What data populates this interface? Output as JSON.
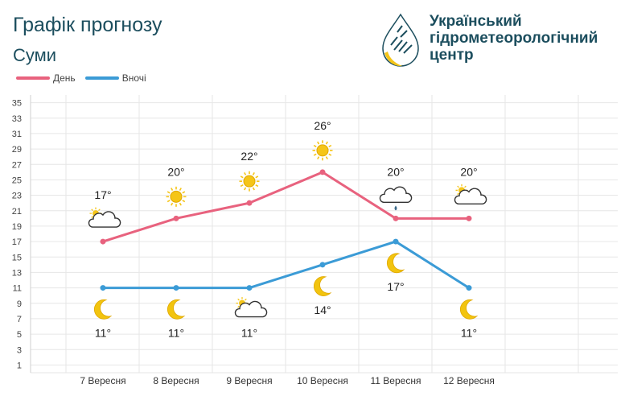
{
  "header": {
    "title": "Графік прогнозу",
    "city": "Суми"
  },
  "logo": {
    "line1": "Український",
    "line2": "гідрометеорологічний",
    "line3": "центр"
  },
  "colors": {
    "day": "#e8627e",
    "night": "#3b9bd6",
    "grid": "#e6e6e6",
    "sun": "#f5c518",
    "moon": "#f2c40f"
  },
  "chart_data": {
    "type": "line",
    "categories": [
      "7 Вересня",
      "8 Вересня",
      "9 Вересня",
      "10 Вересня",
      "11 Вересня",
      "12 Вересня"
    ],
    "series": [
      {
        "name": "День",
        "values": [
          17,
          20,
          22,
          26,
          20,
          20
        ],
        "labels": [
          "17°",
          "20°",
          "22°",
          "26°",
          "20°",
          "20°"
        ],
        "icons": [
          "partly-cloudy-icon",
          "sun-icon",
          "sun-icon",
          "sun-icon",
          "rain-cloud-icon",
          "partly-cloudy-icon"
        ]
      },
      {
        "name": "Вночі",
        "values": [
          11,
          11,
          11,
          14,
          17,
          11
        ],
        "labels": [
          "11°",
          "11°",
          "11°",
          "14°",
          "17°",
          "11°"
        ],
        "icons": [
          "moon-icon",
          "moon-icon",
          "partly-cloudy-icon",
          "moon-icon",
          "moon-icon",
          "moon-icon"
        ]
      }
    ],
    "yticks": [
      1,
      3,
      5,
      7,
      9,
      11,
      13,
      15,
      17,
      19,
      21,
      23,
      25,
      27,
      29,
      31,
      33,
      35
    ],
    "ylim": [
      0,
      36
    ],
    "grid": true,
    "legend": "top-left"
  }
}
